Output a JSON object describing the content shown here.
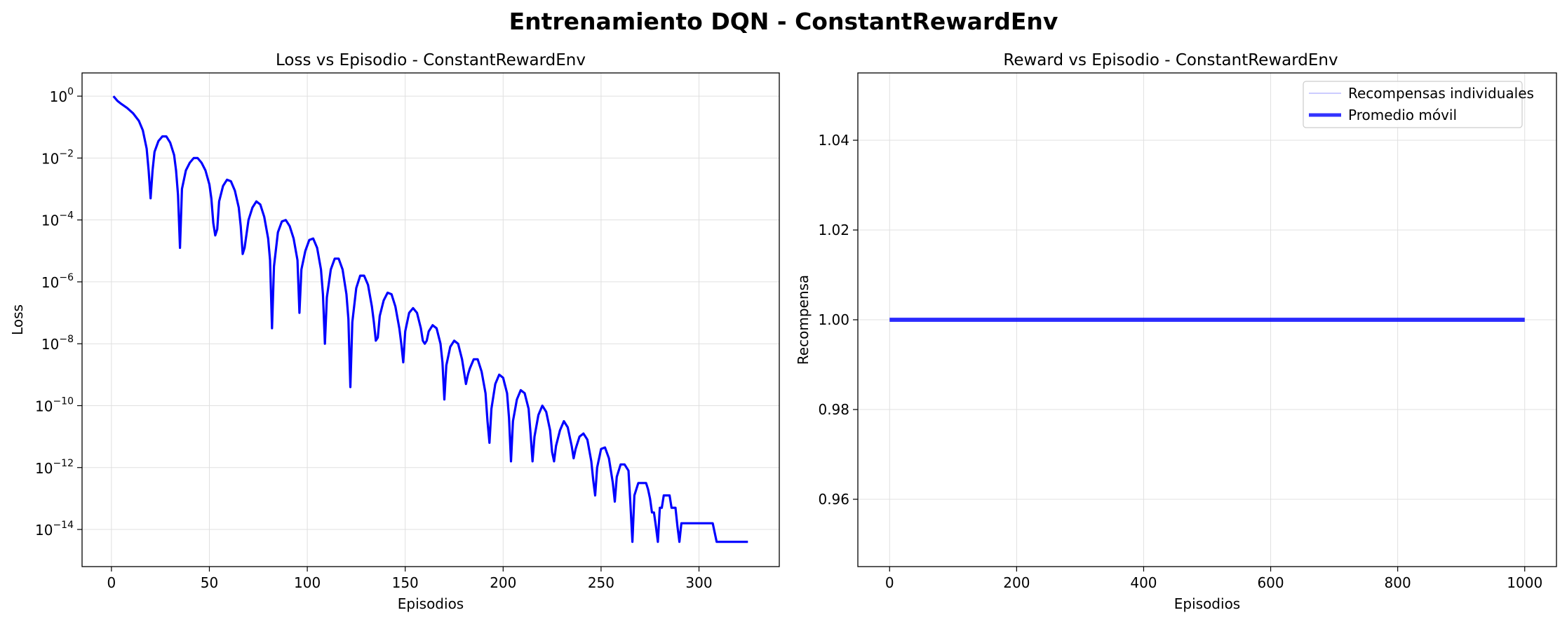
{
  "figure": {
    "title": "Entrenamiento DQN - ConstantRewardEnv"
  },
  "colors": {
    "series": "#0000ff",
    "grid": "#e0e0e0",
    "axes": "#000000"
  },
  "chart_data": [
    {
      "type": "line",
      "title": "Loss vs Episodio - ConstantRewardEnv",
      "xlabel": "Episodios",
      "ylabel": "Loss",
      "yscale": "log",
      "grid": true,
      "xlim": [
        -15,
        341
      ],
      "ylim_exp": [
        -15.2,
        0.75
      ],
      "xticks": [
        0,
        50,
        100,
        150,
        200,
        250,
        300
      ],
      "yticks": [
        {
          "exp": 0,
          "base": "10",
          "sup": "0"
        },
        {
          "exp": -2,
          "base": "10",
          "sup": "−2"
        },
        {
          "exp": -4,
          "base": "10",
          "sup": "−4"
        },
        {
          "exp": -6,
          "base": "10",
          "sup": "−6"
        },
        {
          "exp": -8,
          "base": "10",
          "sup": "−8"
        },
        {
          "exp": -10,
          "base": "10",
          "sup": "−10"
        },
        {
          "exp": -12,
          "base": "10",
          "sup": "−12"
        },
        {
          "exp": -14,
          "base": "10",
          "sup": "−14"
        }
      ],
      "series": [
        {
          "color": "#0000ff",
          "points_log10": [
            [
              1,
              0.0
            ],
            [
              3,
              -0.15
            ],
            [
              5,
              -0.25
            ],
            [
              8,
              -0.38
            ],
            [
              11,
              -0.55
            ],
            [
              14,
              -0.8
            ],
            [
              16,
              -1.1
            ],
            [
              18,
              -1.7
            ],
            [
              19,
              -2.4
            ],
            [
              20,
              -3.3
            ],
            [
              21,
              -2.4
            ],
            [
              22,
              -1.8
            ],
            [
              24,
              -1.45
            ],
            [
              26,
              -1.3
            ],
            [
              28,
              -1.3
            ],
            [
              30,
              -1.5
            ],
            [
              32,
              -1.9
            ],
            [
              33,
              -2.4
            ],
            [
              34,
              -3.2
            ],
            [
              35,
              -4.9
            ],
            [
              36,
              -3.0
            ],
            [
              38,
              -2.4
            ],
            [
              40,
              -2.15
            ],
            [
              42,
              -2.0
            ],
            [
              44,
              -2.0
            ],
            [
              46,
              -2.15
            ],
            [
              48,
              -2.4
            ],
            [
              50,
              -2.85
            ],
            [
              51,
              -3.3
            ],
            [
              52,
              -4.1
            ],
            [
              53,
              -4.5
            ],
            [
              54,
              -4.3
            ],
            [
              55,
              -3.4
            ],
            [
              57,
              -2.9
            ],
            [
              59,
              -2.7
            ],
            [
              61,
              -2.75
            ],
            [
              63,
              -3.05
            ],
            [
              65,
              -3.6
            ],
            [
              66,
              -4.2
            ],
            [
              67,
              -5.1
            ],
            [
              68,
              -4.9
            ],
            [
              70,
              -4.0
            ],
            [
              72,
              -3.6
            ],
            [
              74,
              -3.4
            ],
            [
              76,
              -3.5
            ],
            [
              78,
              -3.9
            ],
            [
              80,
              -4.6
            ],
            [
              81,
              -5.3
            ],
            [
              82,
              -7.5
            ],
            [
              83,
              -5.5
            ],
            [
              85,
              -4.4
            ],
            [
              87,
              -4.05
            ],
            [
              89,
              -4.0
            ],
            [
              91,
              -4.2
            ],
            [
              93,
              -4.6
            ],
            [
              95,
              -5.3
            ],
            [
              96,
              -7.0
            ],
            [
              97,
              -5.6
            ],
            [
              99,
              -5.0
            ],
            [
              101,
              -4.65
            ],
            [
              103,
              -4.6
            ],
            [
              105,
              -4.9
            ],
            [
              107,
              -5.6
            ],
            [
              108,
              -6.4
            ],
            [
              109,
              -8.0
            ],
            [
              110,
              -6.5
            ],
            [
              112,
              -5.6
            ],
            [
              114,
              -5.25
            ],
            [
              116,
              -5.25
            ],
            [
              118,
              -5.6
            ],
            [
              120,
              -6.4
            ],
            [
              121,
              -7.2
            ],
            [
              122,
              -9.4
            ],
            [
              123,
              -7.3
            ],
            [
              125,
              -6.2
            ],
            [
              127,
              -5.8
            ],
            [
              129,
              -5.8
            ],
            [
              131,
              -6.1
            ],
            [
              133,
              -6.8
            ],
            [
              134,
              -7.3
            ],
            [
              135,
              -7.9
            ],
            [
              136,
              -7.8
            ],
            [
              137,
              -7.1
            ],
            [
              139,
              -6.6
            ],
            [
              141,
              -6.35
            ],
            [
              143,
              -6.4
            ],
            [
              145,
              -6.8
            ],
            [
              147,
              -7.5
            ],
            [
              148,
              -8.0
            ],
            [
              149,
              -8.6
            ],
            [
              150,
              -7.6
            ],
            [
              152,
              -7.0
            ],
            [
              154,
              -6.85
            ],
            [
              156,
              -7.0
            ],
            [
              158,
              -7.5
            ],
            [
              159,
              -7.9
            ],
            [
              160,
              -8.0
            ],
            [
              161,
              -7.9
            ],
            [
              162,
              -7.6
            ],
            [
              164,
              -7.4
            ],
            [
              166,
              -7.5
            ],
            [
              168,
              -8.0
            ],
            [
              169,
              -8.6
            ],
            [
              170,
              -9.8
            ],
            [
              171,
              -8.7
            ],
            [
              173,
              -8.1
            ],
            [
              175,
              -7.9
            ],
            [
              177,
              -8.0
            ],
            [
              179,
              -8.5
            ],
            [
              181,
              -9.3
            ],
            [
              182,
              -9.0
            ],
            [
              183,
              -8.8
            ],
            [
              185,
              -8.5
            ],
            [
              187,
              -8.5
            ],
            [
              189,
              -8.9
            ],
            [
              191,
              -9.6
            ],
            [
              192,
              -10.5
            ],
            [
              193,
              -11.2
            ],
            [
              194,
              -10.1
            ],
            [
              196,
              -9.3
            ],
            [
              198,
              -9.0
            ],
            [
              200,
              -9.1
            ],
            [
              202,
              -9.6
            ],
            [
              203,
              -10.4
            ],
            [
              204,
              -11.8
            ],
            [
              205,
              -10.5
            ],
            [
              207,
              -9.8
            ],
            [
              209,
              -9.5
            ],
            [
              211,
              -9.6
            ],
            [
              213,
              -10.1
            ],
            [
              214,
              -10.9
            ],
            [
              215,
              -11.8
            ],
            [
              216,
              -11.0
            ],
            [
              218,
              -10.3
            ],
            [
              220,
              -10.0
            ],
            [
              222,
              -10.2
            ],
            [
              224,
              -10.8
            ],
            [
              225,
              -11.5
            ],
            [
              226,
              -11.8
            ],
            [
              227,
              -11.3
            ],
            [
              229,
              -10.8
            ],
            [
              231,
              -10.5
            ],
            [
              233,
              -10.7
            ],
            [
              235,
              -11.3
            ],
            [
              236,
              -11.7
            ],
            [
              237,
              -11.4
            ],
            [
              239,
              -11.0
            ],
            [
              241,
              -10.9
            ],
            [
              243,
              -11.1
            ],
            [
              245,
              -11.8
            ],
            [
              246,
              -12.4
            ],
            [
              247,
              -12.9
            ],
            [
              248,
              -12.0
            ],
            [
              250,
              -11.4
            ],
            [
              252,
              -11.35
            ],
            [
              254,
              -11.7
            ],
            [
              256,
              -12.5
            ],
            [
              257,
              -13.1
            ],
            [
              258,
              -12.3
            ],
            [
              260,
              -11.9
            ],
            [
              262,
              -11.9
            ],
            [
              264,
              -12.1
            ],
            [
              265,
              -13.2
            ],
            [
              266,
              -14.4
            ],
            [
              267,
              -12.9
            ],
            [
              269,
              -12.5
            ],
            [
              271,
              -12.5
            ],
            [
              273,
              -12.5
            ],
            [
              274,
              -12.7
            ],
            [
              275,
              -13.0
            ],
            [
              276,
              -13.45
            ],
            [
              277,
              -13.45
            ],
            [
              278,
              -13.9
            ],
            [
              279,
              -14.4
            ],
            [
              280,
              -13.3
            ],
            [
              281,
              -13.3
            ],
            [
              282,
              -12.9
            ],
            [
              285,
              -12.9
            ],
            [
              286,
              -13.3
            ],
            [
              288,
              -13.3
            ],
            [
              289,
              -13.9
            ],
            [
              290,
              -14.4
            ],
            [
              291,
              -13.8
            ],
            [
              307,
              -13.8
            ],
            [
              309,
              -14.4
            ],
            [
              325,
              -14.4
            ]
          ]
        }
      ]
    },
    {
      "type": "line",
      "title": "Reward vs Episodio - ConstantRewardEnv",
      "xlabel": "Episodios",
      "ylabel": "Recompensa",
      "grid": true,
      "xlim": [
        -50,
        1050
      ],
      "ylim": [
        0.945,
        1.055
      ],
      "xticks": [
        0,
        200,
        400,
        600,
        800,
        1000
      ],
      "yticks": [
        "0.96",
        "0.98",
        "1.00",
        "1.02",
        "1.04"
      ],
      "legend": "upper-right",
      "series": [
        {
          "name": "Recompensas individuales",
          "color": "#0000ff",
          "x": [
            0,
            1000
          ],
          "y": [
            1.0,
            1.0
          ]
        },
        {
          "name": "Promedio móvil",
          "color": "#0000ff",
          "x": [
            0,
            1000
          ],
          "y": [
            1.0,
            1.0
          ]
        }
      ]
    }
  ]
}
